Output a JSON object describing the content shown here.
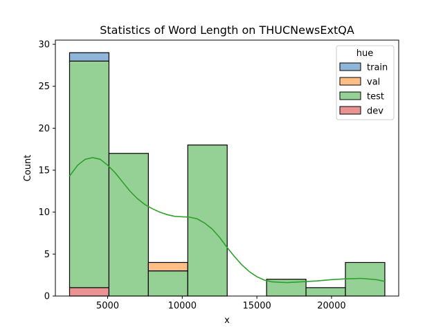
{
  "chart_data": {
    "type": "bar",
    "subtype": "stacked-histogram",
    "title": "Statistics of Word Length on THUCNewsExtQA",
    "xlabel": "x",
    "ylabel": "Count",
    "xlim": [
      1500,
      24500
    ],
    "ylim": [
      0,
      30.5
    ],
    "xticks": [
      5000,
      10000,
      15000,
      20000
    ],
    "yticks": [
      0,
      5,
      10,
      15,
      20,
      25,
      30
    ],
    "grid": false,
    "legend": {
      "title": "hue",
      "placement": "top-right"
    },
    "bin_edges": [
      2450,
      5090,
      7730,
      10370,
      13010,
      15650,
      18290,
      20930,
      23570
    ],
    "series": [
      {
        "name": "train",
        "color": "#8fb6d9",
        "values": [
          1,
          0,
          0,
          0,
          0,
          0,
          0,
          0
        ]
      },
      {
        "name": "val",
        "color": "#ffbe86",
        "values": [
          0,
          0,
          1,
          0,
          0,
          0,
          0,
          0
        ]
      },
      {
        "name": "test",
        "color": "#95d095",
        "values": [
          27,
          17,
          3,
          18,
          0,
          2,
          1,
          4
        ]
      },
      {
        "name": "dev",
        "color": "#ea9393",
        "values": [
          1,
          0,
          0,
          0,
          0,
          0,
          0,
          0
        ]
      }
    ],
    "kde": {
      "series": "test",
      "color": "#2ca02c",
      "x": [
        2450,
        3000,
        3500,
        4000,
        4500,
        5000,
        5500,
        6000,
        6500,
        7000,
        7500,
        8000,
        8500,
        9000,
        9500,
        10000,
        10500,
        11000,
        11500,
        12000,
        12500,
        13000,
        13500,
        14000,
        14500,
        15000,
        15500,
        16000,
        17000,
        18000,
        19000,
        20000,
        21000,
        22000,
        23000,
        23570
      ],
      "y": [
        14.3,
        15.6,
        16.3,
        16.5,
        16.3,
        15.6,
        14.7,
        13.6,
        12.5,
        11.6,
        10.9,
        10.4,
        10.0,
        9.7,
        9.5,
        9.45,
        9.4,
        9.2,
        8.7,
        8.0,
        7.0,
        5.8,
        4.7,
        3.7,
        2.9,
        2.3,
        1.9,
        1.7,
        1.6,
        1.7,
        1.8,
        1.95,
        2.05,
        2.1,
        1.95,
        1.75
      ]
    }
  }
}
